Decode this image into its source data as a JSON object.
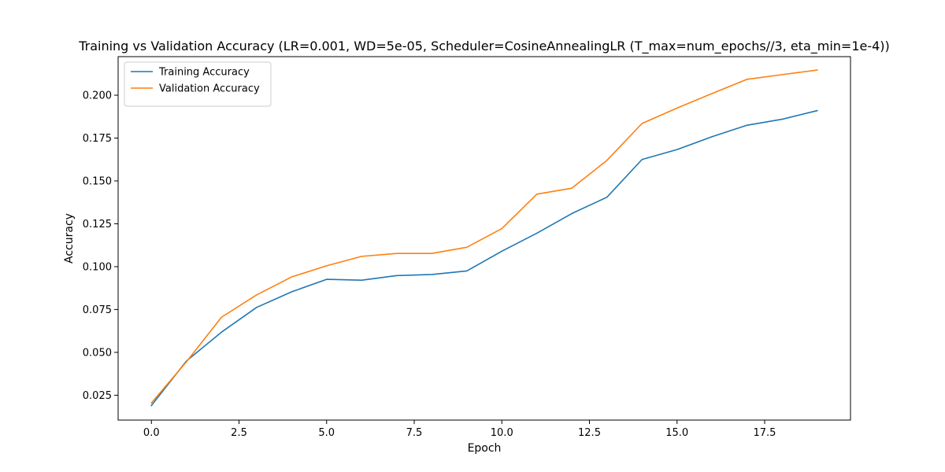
{
  "chart_data": {
    "type": "line",
    "title": "Training vs Validation Accuracy (LR=0.001, WD=5e-05, Scheduler=CosineAnnealingLR (T_max=num_epochs//3, eta_min=1e-4))",
    "xlabel": "Epoch",
    "ylabel": "Accuracy",
    "xlim": [
      -0.95,
      19.95
    ],
    "ylim": [
      0.0105,
      0.2225
    ],
    "x_ticks": [
      0.0,
      2.5,
      5.0,
      7.5,
      10.0,
      12.5,
      15.0,
      17.5
    ],
    "x_tick_labels": [
      "0.0",
      "2.5",
      "5.0",
      "7.5",
      "10.0",
      "12.5",
      "15.0",
      "17.5"
    ],
    "y_ticks": [
      0.025,
      0.05,
      0.075,
      0.1,
      0.125,
      0.15,
      0.175,
      0.2
    ],
    "y_tick_labels": [
      "0.025",
      "0.050",
      "0.075",
      "0.100",
      "0.125",
      "0.150",
      "0.175",
      "0.200"
    ],
    "grid": false,
    "legend_position": "upper-left",
    "x": [
      0,
      1,
      2,
      3,
      4,
      5,
      6,
      7,
      8,
      9,
      10,
      11,
      12,
      13,
      14,
      15,
      16,
      17,
      18,
      19
    ],
    "series": [
      {
        "name": "Training Accuracy",
        "color": "#1f77b4",
        "values": [
          0.019,
          0.045,
          0.0618,
          0.0762,
          0.0853,
          0.0926,
          0.0921,
          0.0948,
          0.0954,
          0.0975,
          0.109,
          0.1195,
          0.131,
          0.1405,
          0.1625,
          0.1683,
          0.1758,
          0.1825,
          0.186,
          0.191
        ]
      },
      {
        "name": "Validation Accuracy",
        "color": "#ff7f0e",
        "values": [
          0.0205,
          0.0445,
          0.0705,
          0.0835,
          0.094,
          0.1005,
          0.106,
          0.1077,
          0.1077,
          0.1113,
          0.1222,
          0.1423,
          0.1458,
          0.162,
          0.1835,
          0.1925,
          0.201,
          0.2093,
          0.212,
          0.2147
        ]
      }
    ]
  }
}
